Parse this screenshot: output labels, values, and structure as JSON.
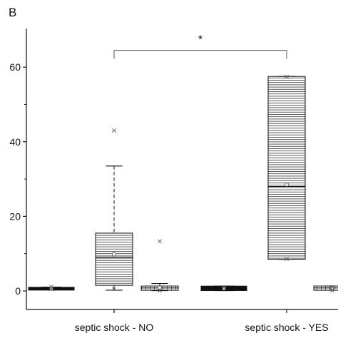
{
  "panel_label": "B",
  "chart_data": {
    "type": "box",
    "title": "",
    "xlabel": "",
    "ylabel": "",
    "ylim": [
      -5,
      70
    ],
    "yticks": [
      0,
      20,
      40,
      60
    ],
    "grid": false,
    "groups": [
      {
        "label": "septic shock - NO",
        "boxes": [
          {
            "fill": "solid",
            "q1": 0.4,
            "median": 0.6,
            "q3": 0.8,
            "whisker_low": 0.3,
            "whisker_high": 1.0,
            "mean": 0.6,
            "outliers": [
              0.5,
              1.1
            ]
          },
          {
            "fill": "hlines",
            "q1": 1.5,
            "median": 9.0,
            "q3": 15.5,
            "whisker_low": 0.2,
            "whisker_high": 33.5,
            "mean": 9.8,
            "outliers": [
              0.5,
              43.0
            ]
          },
          {
            "fill": "grid",
            "q1": 0.2,
            "median": 0.8,
            "q3": 1.3,
            "whisker_low": 0.1,
            "whisker_high": 2.0,
            "mean": 0.9,
            "outliers": [
              0.1,
              13.3
            ]
          }
        ]
      },
      {
        "label": "septic shock - YES",
        "boxes": [
          {
            "fill": "solid",
            "q1": 0.1,
            "median": 0.7,
            "q3": 1.3,
            "whisker_low": 0.1,
            "whisker_high": 1.3,
            "mean": 0.7,
            "outliers": [
              0.9
            ]
          },
          {
            "fill": "hlines",
            "q1": 8.5,
            "median": 28.0,
            "q3": 57.5,
            "whisker_low": 8.5,
            "whisker_high": 57.5,
            "mean": 28.5,
            "outliers": [
              8.6,
              57.4
            ]
          },
          {
            "fill": "grid",
            "q1": 0.2,
            "median": 0.8,
            "q3": 1.3,
            "whisker_low": 0.2,
            "whisker_high": 1.3,
            "mean": 0.8,
            "outliers": [
              0.1,
              1.0
            ]
          }
        ]
      }
    ],
    "annotations": [
      {
        "type": "significance-bracket",
        "text": "*",
        "from_group": 0,
        "to_group": 1,
        "y": 64.5
      }
    ]
  }
}
